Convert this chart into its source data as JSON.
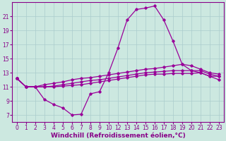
{
  "xlabel": "Windchill (Refroidissement éolien,°C)",
  "bg_color": "#cce8e0",
  "grid_color": "#aacccc",
  "line_color": "#990099",
  "xlim": [
    -0.5,
    22.5
  ],
  "ylim": [
    6.0,
    23.0
  ],
  "yticks": [
    7,
    9,
    11,
    13,
    15,
    17,
    19,
    21
  ],
  "xtick_positions": [
    0,
    1,
    2,
    3,
    4,
    5,
    6,
    7,
    8,
    9,
    10,
    11,
    12,
    13,
    14,
    15,
    16,
    17,
    18,
    19,
    20,
    21,
    22
  ],
  "xtick_labels": [
    "0",
    "1",
    "2",
    "3",
    "4",
    "5",
    "6",
    "7",
    "8",
    "9",
    "10",
    "12",
    "13",
    "14",
    "15",
    "16",
    "17",
    "18",
    "19",
    "20",
    "21",
    "22",
    "23"
  ],
  "line1_x": [
    0,
    1,
    2,
    3,
    4,
    5,
    6,
    7,
    8,
    9,
    10,
    11,
    12,
    13,
    14,
    15,
    16,
    17,
    18,
    19,
    20,
    21,
    22
  ],
  "line1_y": [
    12.2,
    11.0,
    11.0,
    9.2,
    8.5,
    8.0,
    7.0,
    7.1,
    10.0,
    10.3,
    13.0,
    16.5,
    20.5,
    22.0,
    22.2,
    22.5,
    20.5,
    17.5,
    14.2,
    13.3,
    13.0,
    12.5,
    12.0
  ],
  "line2_x": [
    0,
    1,
    2,
    3,
    4,
    5,
    6,
    7,
    8,
    9,
    10,
    11,
    12,
    13,
    14,
    15,
    16,
    17,
    18,
    19,
    20,
    21,
    22
  ],
  "line2_y": [
    12.2,
    11.0,
    11.0,
    11.0,
    11.0,
    11.1,
    11.2,
    11.3,
    11.5,
    11.7,
    11.9,
    12.1,
    12.3,
    12.5,
    12.7,
    12.8,
    12.8,
    12.9,
    12.9,
    12.9,
    13.0,
    12.5,
    12.5
  ],
  "line3_x": [
    0,
    1,
    2,
    3,
    4,
    5,
    6,
    7,
    8,
    9,
    10,
    11,
    12,
    13,
    14,
    15,
    16,
    17,
    18,
    19,
    20,
    21,
    22
  ],
  "line3_y": [
    12.2,
    11.0,
    11.0,
    11.0,
    11.1,
    11.3,
    11.5,
    11.7,
    11.9,
    12.0,
    12.2,
    12.4,
    12.6,
    12.8,
    13.0,
    13.1,
    13.2,
    13.3,
    13.3,
    13.3,
    13.3,
    12.8,
    12.5
  ],
  "line4_x": [
    0,
    1,
    2,
    3,
    4,
    5,
    6,
    7,
    8,
    9,
    10,
    11,
    12,
    13,
    14,
    15,
    16,
    17,
    18,
    19,
    20,
    21,
    22
  ],
  "line4_y": [
    12.2,
    11.0,
    11.0,
    11.3,
    11.5,
    11.7,
    12.0,
    12.2,
    12.3,
    12.5,
    12.7,
    12.9,
    13.1,
    13.3,
    13.5,
    13.6,
    13.8,
    14.0,
    14.2,
    14.0,
    13.5,
    13.0,
    12.8
  ],
  "font_color": "#880088",
  "tick_fontsize": 5.5,
  "xlabel_fontsize": 6.5
}
